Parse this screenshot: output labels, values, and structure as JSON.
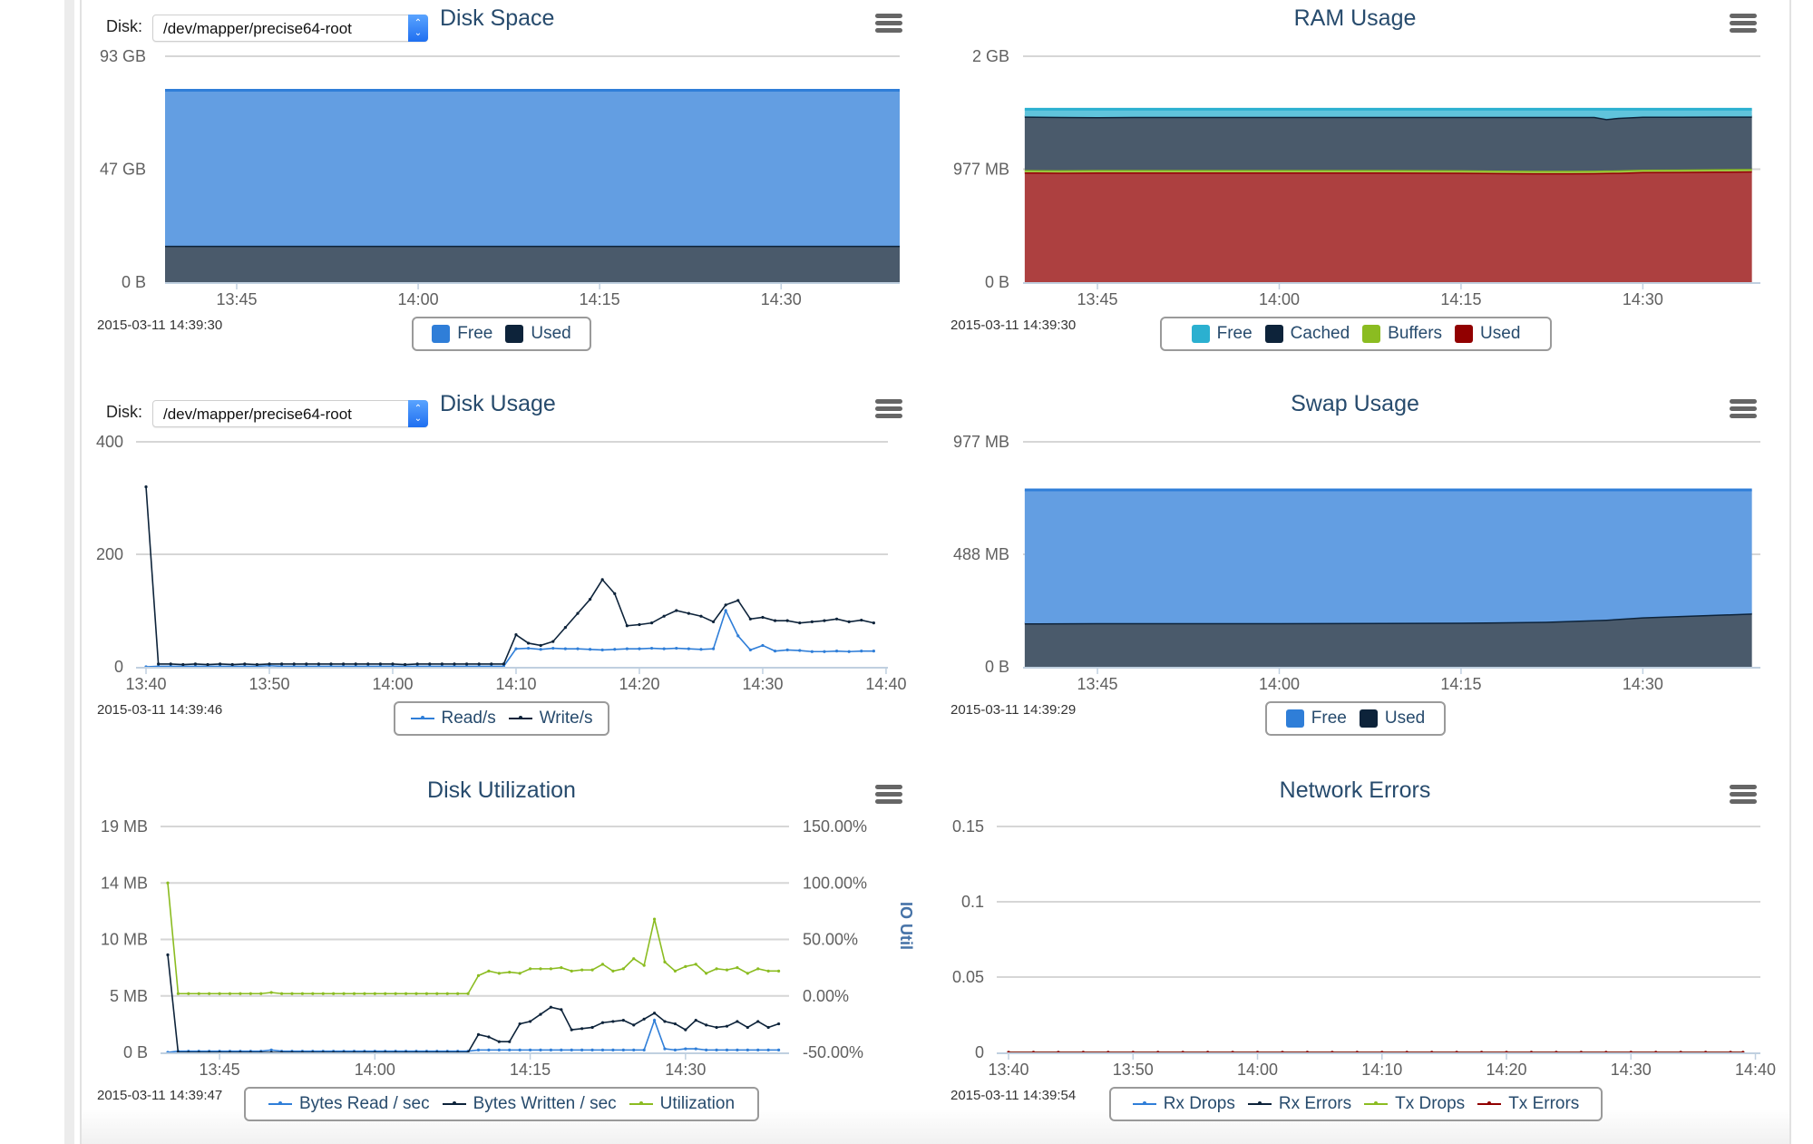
{
  "controls": {
    "disk_label": "Disk:",
    "disk_value": "/dev/mapper/precise64-root"
  },
  "chart_data": [
    {
      "id": "disk-space",
      "type": "area",
      "stacked": true,
      "title": "Disk Space",
      "timestamp": "2015-03-11 14:39:30",
      "unit": "GB",
      "ylim": [
        0,
        93
      ],
      "y_ticks": [
        {
          "value": 0,
          "label": "0 B"
        },
        {
          "value": 46.5,
          "label": "47 GB"
        },
        {
          "value": 93,
          "label": "93 GB"
        }
      ],
      "x_ticks": [
        "13:45",
        "14:00",
        "14:15",
        "14:30"
      ],
      "x": [
        "13:39",
        "14:40"
      ],
      "series": [
        {
          "name": "Free",
          "color": "#2f7ed8",
          "values": [
            64,
            64
          ]
        },
        {
          "name": "Used",
          "color": "#0d233a",
          "values": [
            15,
            15
          ]
        }
      ]
    },
    {
      "id": "ram-usage",
      "type": "area",
      "stacked": true,
      "title": "RAM Usage",
      "timestamp": "2015-03-11 14:39:30",
      "unit": "MB",
      "ylim": [
        0,
        1954
      ],
      "y_ticks": [
        {
          "value": 0,
          "label": "0 B"
        },
        {
          "value": 977,
          "label": "977 MB"
        },
        {
          "value": 1954,
          "label": "2 GB"
        }
      ],
      "x_ticks": [
        "13:45",
        "14:00",
        "14:15",
        "14:30"
      ],
      "x": [
        "13:39",
        "13:42",
        "13:45",
        "13:48",
        "13:51",
        "13:54",
        "13:57",
        "14:00",
        "14:03",
        "14:06",
        "14:09",
        "14:12",
        "14:15",
        "14:18",
        "14:21",
        "14:24",
        "14:26",
        "14:27",
        "14:28",
        "14:30",
        "14:33",
        "14:36",
        "14:39"
      ],
      "series": [
        {
          "name": "Free",
          "color": "#2bb0d0",
          "values": [
            63,
            66,
            68,
            66,
            66,
            66,
            66,
            66,
            66,
            66,
            66,
            66,
            66,
            66,
            66,
            66,
            66,
            84,
            74,
            64,
            64,
            63,
            63
          ]
        },
        {
          "name": "Cached",
          "color": "#0d233a",
          "values": [
            463,
            462,
            458,
            460,
            460,
            460,
            460,
            460,
            460,
            460,
            460,
            461,
            462,
            465,
            467,
            467,
            466,
            446,
            455,
            459,
            458,
            456,
            454
          ]
        },
        {
          "name": "Buffers",
          "color": "#8bbc21",
          "values": [
            20,
            20,
            20,
            20,
            20,
            20,
            20,
            20,
            20,
            20,
            20,
            20,
            20,
            20,
            20,
            20,
            20,
            20,
            20,
            20,
            20,
            20,
            20
          ]
        },
        {
          "name": "Used",
          "color": "#910000",
          "values": [
            950,
            948,
            950,
            950,
            950,
            950,
            950,
            950,
            950,
            950,
            950,
            949,
            948,
            945,
            943,
            943,
            944,
            946,
            947,
            953,
            954,
            957,
            959
          ]
        }
      ]
    },
    {
      "id": "disk-usage",
      "type": "line",
      "title": "Disk Usage",
      "timestamp": "2015-03-11 14:39:46",
      "ylim": [
        0,
        400
      ],
      "y_ticks": [
        {
          "value": 0,
          "label": "0"
        },
        {
          "value": 200,
          "label": "200"
        },
        {
          "value": 400,
          "label": "400"
        }
      ],
      "x_ticks": [
        "13:40",
        "13:50",
        "14:00",
        "14:10",
        "14:20",
        "14:30",
        "14:40"
      ],
      "x": [
        "13:40",
        "13:41",
        "13:42",
        "13:43",
        "13:44",
        "13:45",
        "13:46",
        "13:47",
        "13:48",
        "13:49",
        "13:50",
        "13:51",
        "13:52",
        "13:53",
        "13:54",
        "13:55",
        "13:56",
        "13:57",
        "13:58",
        "13:59",
        "14:00",
        "14:01",
        "14:02",
        "14:03",
        "14:04",
        "14:05",
        "14:06",
        "14:07",
        "14:08",
        "14:09",
        "14:10",
        "14:11",
        "14:12",
        "14:13",
        "14:14",
        "14:15",
        "14:16",
        "14:17",
        "14:18",
        "14:19",
        "14:20",
        "14:21",
        "14:22",
        "14:23",
        "14:24",
        "14:25",
        "14:26",
        "14:27",
        "14:28",
        "14:29",
        "14:30",
        "14:31",
        "14:32",
        "14:33",
        "14:34",
        "14:35",
        "14:36",
        "14:37",
        "14:38",
        "14:39"
      ],
      "series": [
        {
          "name": "Read/s",
          "color": "#2f7ed8",
          "values": [
            0,
            1,
            1,
            1,
            1,
            1,
            1,
            1,
            1,
            1,
            2,
            1,
            1,
            1,
            1,
            1,
            1,
            1,
            1,
            1,
            1,
            1,
            1,
            1,
            1,
            1,
            1,
            1,
            1,
            1,
            32,
            33,
            31,
            33,
            32,
            32,
            31,
            30,
            31,
            32,
            32,
            33,
            32,
            33,
            32,
            31,
            32,
            100,
            55,
            30,
            38,
            28,
            30,
            29,
            27,
            27,
            28,
            27,
            28,
            28
          ]
        },
        {
          "name": "Write/s",
          "color": "#0d233a",
          "values": [
            320,
            5,
            5,
            4,
            5,
            4,
            5,
            4,
            5,
            4,
            5,
            5,
            5,
            5,
            5,
            5,
            5,
            5,
            5,
            5,
            5,
            4,
            5,
            5,
            5,
            5,
            5,
            5,
            5,
            5,
            57,
            42,
            38,
            45,
            70,
            95,
            120,
            155,
            130,
            73,
            75,
            78,
            90,
            100,
            95,
            90,
            80,
            110,
            118,
            85,
            88,
            82,
            82,
            78,
            80,
            82,
            85,
            80,
            83,
            78
          ]
        }
      ]
    },
    {
      "id": "swap-usage",
      "type": "area",
      "stacked": true,
      "title": "Swap Usage",
      "timestamp": "2015-03-11 14:39:29",
      "unit": "MB",
      "ylim": [
        0,
        977
      ],
      "y_ticks": [
        {
          "value": 0,
          "label": "0 B"
        },
        {
          "value": 488.5,
          "label": "488 MB"
        },
        {
          "value": 977,
          "label": "977 MB"
        }
      ],
      "x_ticks": [
        "13:45",
        "14:00",
        "14:15",
        "14:30"
      ],
      "x": [
        "13:39",
        "13:45",
        "14:00",
        "14:15",
        "14:22",
        "14:27",
        "14:30",
        "14:39"
      ],
      "series": [
        {
          "name": "Free",
          "color": "#2f7ed8",
          "values": [
            579,
            578,
            578,
            576,
            572,
            563,
            553,
            536
          ]
        },
        {
          "name": "Used",
          "color": "#0d233a",
          "values": [
            189,
            190,
            190,
            192,
            196,
            205,
            215,
            232
          ]
        }
      ]
    },
    {
      "id": "disk-utilization",
      "type": "line",
      "title": "Disk Utilization",
      "timestamp": "2015-03-11 14:39:47",
      "ylim": [
        0,
        19
      ],
      "ylim_right": [
        -50,
        150
      ],
      "ylabel_right": "IO Util",
      "y_ticks": [
        {
          "value": 0,
          "label": "0 B"
        },
        {
          "value": 4.75,
          "label": "5 MB"
        },
        {
          "value": 9.5,
          "label": "10 MB"
        },
        {
          "value": 14.25,
          "label": "14 MB"
        },
        {
          "value": 19,
          "label": "19 MB"
        }
      ],
      "y_ticks_right": [
        {
          "value": -50,
          "label": "-50.00%"
        },
        {
          "value": 0,
          "label": "0.00%"
        },
        {
          "value": 50,
          "label": "50.00%"
        },
        {
          "value": 100,
          "label": "100.00%"
        },
        {
          "value": 150,
          "label": "150.00%"
        }
      ],
      "x_ticks": [
        "13:45",
        "14:00",
        "14:15",
        "14:30"
      ],
      "x": [
        "13:40",
        "13:41",
        "13:42",
        "13:43",
        "13:44",
        "13:45",
        "13:46",
        "13:47",
        "13:48",
        "13:49",
        "13:50",
        "13:51",
        "13:52",
        "13:53",
        "13:54",
        "13:55",
        "13:56",
        "13:57",
        "13:58",
        "13:59",
        "14:00",
        "14:01",
        "14:02",
        "14:03",
        "14:04",
        "14:05",
        "14:06",
        "14:07",
        "14:08",
        "14:09",
        "14:10",
        "14:11",
        "14:12",
        "14:13",
        "14:14",
        "14:15",
        "14:16",
        "14:17",
        "14:18",
        "14:19",
        "14:20",
        "14:21",
        "14:22",
        "14:23",
        "14:24",
        "14:25",
        "14:26",
        "14:27",
        "14:28",
        "14:29",
        "14:30",
        "14:31",
        "14:32",
        "14:33",
        "14:34",
        "14:35",
        "14:36",
        "14:37",
        "14:38",
        "14:39"
      ],
      "series": [
        {
          "name": "Bytes Read / sec",
          "color": "#2f7ed8",
          "axis": "left",
          "values": [
            0,
            0.1,
            0.1,
            0.1,
            0.1,
            0.1,
            0.1,
            0.1,
            0.1,
            0.1,
            0.2,
            0.1,
            0.1,
            0.1,
            0.1,
            0.1,
            0.1,
            0.1,
            0.1,
            0.1,
            0.1,
            0.1,
            0.1,
            0.1,
            0.1,
            0.1,
            0.1,
            0.1,
            0.1,
            0.1,
            0.2,
            0.2,
            0.2,
            0.2,
            0.2,
            0.2,
            0.2,
            0.2,
            0.2,
            0.2,
            0.2,
            0.2,
            0.2,
            0.2,
            0.2,
            0.2,
            0.2,
            2.7,
            0.3,
            0.2,
            0.3,
            0.3,
            0.2,
            0.2,
            0.2,
            0.2,
            0.2,
            0.2,
            0.2,
            0.2
          ]
        },
        {
          "name": "Bytes Written / sec",
          "color": "#0d233a",
          "axis": "left",
          "values": [
            8.2,
            0,
            0,
            0,
            0,
            0,
            0,
            0,
            0,
            0,
            0,
            0,
            0,
            0,
            0,
            0,
            0,
            0,
            0,
            0,
            0,
            0,
            0,
            0,
            0,
            0,
            0,
            0,
            0,
            0,
            1.5,
            1.3,
            0.9,
            0.9,
            2.4,
            2.6,
            3.2,
            3.8,
            3.6,
            1.9,
            2.0,
            2.1,
            2.5,
            2.6,
            2.7,
            2.3,
            2.8,
            3.3,
            2.6,
            2.4,
            1.9,
            2.7,
            2.3,
            2.1,
            2.2,
            2.6,
            2.1,
            2.6,
            2.1,
            2.4
          ]
        },
        {
          "name": "Utilization",
          "color": "#8bbc21",
          "axis": "right",
          "values": [
            100,
            2,
            2,
            2,
            2,
            2,
            2,
            2,
            2,
            2,
            3,
            2,
            2,
            2,
            2,
            2,
            2,
            2,
            2,
            2,
            2,
            2,
            2,
            2,
            2,
            2,
            2,
            2,
            2,
            2,
            18,
            22,
            20,
            21,
            20,
            24,
            24,
            24,
            25,
            22,
            23,
            23,
            28,
            22,
            24,
            33,
            27,
            68,
            30,
            22,
            26,
            28,
            20,
            24,
            23,
            25,
            20,
            24,
            22,
            22
          ]
        }
      ]
    },
    {
      "id": "network-errors",
      "type": "line",
      "title": "Network Errors",
      "timestamp": "2015-03-11 14:39:54",
      "ylim": [
        0,
        0.15
      ],
      "y_ticks": [
        {
          "value": 0,
          "label": "0"
        },
        {
          "value": 0.05,
          "label": "0.05"
        },
        {
          "value": 0.1,
          "label": "0.1"
        },
        {
          "value": 0.15,
          "label": "0.15"
        }
      ],
      "x_ticks": [
        "13:40",
        "13:50",
        "14:00",
        "14:10",
        "14:20",
        "14:30",
        "14:40"
      ],
      "x": [
        "13:40",
        "13:42",
        "13:44",
        "13:46",
        "13:48",
        "13:50",
        "13:52",
        "13:54",
        "13:56",
        "13:58",
        "14:00",
        "14:02",
        "14:04",
        "14:06",
        "14:08",
        "14:10",
        "14:12",
        "14:14",
        "14:16",
        "14:18",
        "14:20",
        "14:22",
        "14:24",
        "14:26",
        "14:28",
        "14:30",
        "14:32",
        "14:34",
        "14:36",
        "14:38",
        "14:39"
      ],
      "series": [
        {
          "name": "Rx Drops",
          "color": "#2f7ed8",
          "values": [
            0,
            0,
            0,
            0,
            0,
            0,
            0,
            0,
            0,
            0,
            0,
            0,
            0,
            0,
            0,
            0,
            0,
            0,
            0,
            0,
            0,
            0,
            0,
            0,
            0,
            0,
            0,
            0,
            0,
            0,
            0
          ]
        },
        {
          "name": "Rx Errors",
          "color": "#0d233a",
          "values": [
            0,
            0,
            0,
            0,
            0,
            0,
            0,
            0,
            0,
            0,
            0,
            0,
            0,
            0,
            0,
            0,
            0,
            0,
            0,
            0,
            0,
            0,
            0,
            0,
            0,
            0,
            0,
            0,
            0,
            0,
            0
          ]
        },
        {
          "name": "Tx Drops",
          "color": "#8bbc21",
          "values": [
            0,
            0,
            0,
            0,
            0,
            0,
            0,
            0,
            0,
            0,
            0,
            0,
            0,
            0,
            0,
            0,
            0,
            0,
            0,
            0,
            0,
            0,
            0,
            0,
            0,
            0,
            0,
            0,
            0,
            0,
            0
          ]
        },
        {
          "name": "Tx Errors",
          "color": "#910000",
          "values": [
            0,
            0,
            0,
            0,
            0,
            0,
            0,
            0,
            0,
            0,
            0,
            0,
            0,
            0,
            0,
            0,
            0,
            0,
            0,
            0,
            0,
            0,
            0,
            0,
            0,
            0,
            0,
            0,
            0,
            0,
            0
          ]
        }
      ]
    }
  ]
}
